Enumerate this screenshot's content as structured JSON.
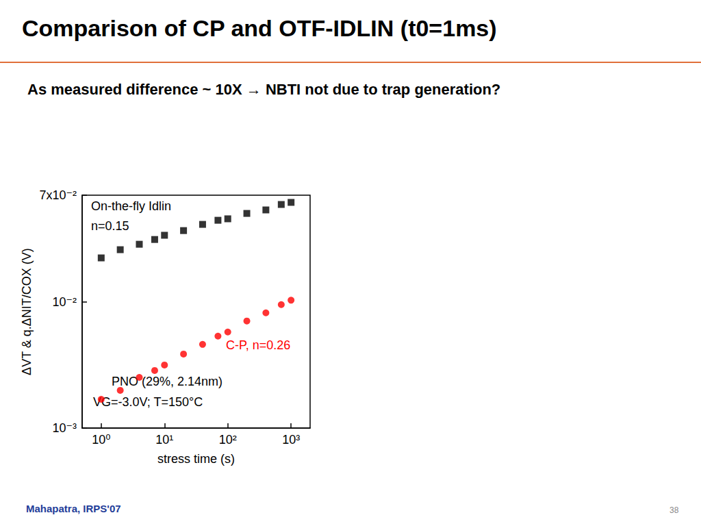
{
  "chart_data": {
    "type": "scatter",
    "title": "Comparison of CP and OTF-IDLIN (t0=1ms)",
    "subtitle": "As measured difference ~ 10X → NBTI not due to trap generation?",
    "x_label": "stress time (s)",
    "y_label": "ΔVT & q.ΔNIT/COX (V)",
    "log": true,
    "grid": false,
    "xlim": [
      0.5,
      2000
    ],
    "xticks": [
      {
        "value": 1,
        "label": "10⁰"
      },
      {
        "value": 10,
        "label": "10¹"
      },
      {
        "value": 100,
        "label": "10²"
      },
      {
        "value": 1000,
        "label": "10³"
      }
    ],
    "ylim": [
      0.001,
      0.07
    ],
    "yticks": [
      {
        "value": 0.001,
        "label": "10⁻³"
      },
      {
        "value": 0.01,
        "label": "10⁻²"
      },
      {
        "value": 0.07,
        "label": "7x10⁻²"
      }
    ],
    "x": [
      1,
      2,
      4,
      7,
      10,
      20,
      40,
      70,
      100,
      200,
      400,
      700,
      1000
    ],
    "series": [
      {
        "name": "On-the-fly Idlin",
        "annotation": "n=0.15",
        "color": "#000000",
        "marker": "square",
        "values": [
          0.0223,
          0.0259,
          0.0286,
          0.0312,
          0.0337,
          0.0367,
          0.0411,
          0.0443,
          0.0455,
          0.0502,
          0.0535,
          0.0591,
          0.0614
        ]
      },
      {
        "name": "C-P, n=0.26",
        "color": "#ff0000",
        "marker": "circle",
        "values": [
          0.00169,
          0.00199,
          0.00252,
          0.00286,
          0.00316,
          0.00386,
          0.0046,
          0.00535,
          0.00577,
          0.00705,
          0.00819,
          0.00951,
          0.0103
        ]
      }
    ],
    "annotations": [
      "PNO (29%, 2.14nm)",
      "VG=-3.0V; T=150°C"
    ],
    "footer": "Mahapatra, IRPS'07",
    "page_number": 38
  }
}
